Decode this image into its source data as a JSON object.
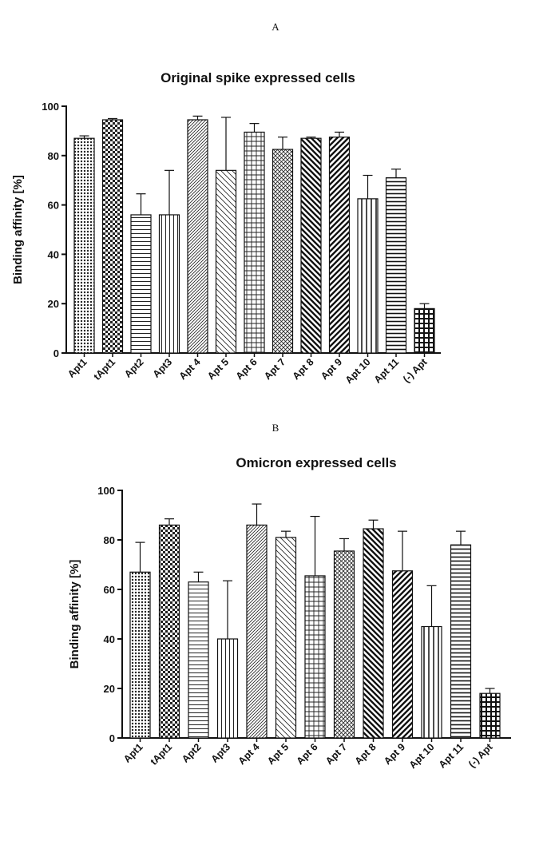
{
  "chart_data": [
    {
      "panel": "A",
      "type": "bar",
      "title": "Original spike expressed cells",
      "xlabel": "",
      "ylabel": "Binding affinity [%]",
      "ylim": [
        0,
        100
      ],
      "yticks": [
        0,
        20,
        40,
        60,
        80,
        100
      ],
      "categories": [
        "Apt1",
        "tApt1",
        "Apt2",
        "Apt3",
        "Apt 4",
        "Apt 5",
        "Apt 6",
        "Apt 7",
        "Apt 8",
        "Apt 9",
        "Apt 10",
        "Apt 11",
        "(-) Apt"
      ],
      "values": [
        87,
        94.5,
        56,
        56,
        94.5,
        74,
        89.5,
        82.5,
        87,
        87.5,
        62.5,
        71,
        18
      ],
      "errors": [
        1,
        0.5,
        8.5,
        18,
        1.5,
        21.5,
        3.5,
        5,
        0.5,
        2,
        9.5,
        3.5,
        2
      ]
    },
    {
      "panel": "B",
      "type": "bar",
      "title": "Omicron expressed cells",
      "xlabel": "",
      "ylabel": "Binding affinity [%]",
      "ylim": [
        0,
        100
      ],
      "yticks": [
        0,
        20,
        40,
        60,
        80,
        100
      ],
      "categories": [
        "Apt1",
        "tApt1",
        "Apt2",
        "Apt3",
        "Apt 4",
        "Apt 5",
        "Apt 6",
        "Apt 7",
        "Apt 8",
        "Apt 9",
        "Apt 10",
        "Apt 11",
        "(-) Apt"
      ],
      "values": [
        67,
        86,
        63,
        40,
        86,
        81,
        65.5,
        75.5,
        84.5,
        67.5,
        45,
        78,
        18
      ],
      "errors": [
        12,
        2.5,
        4,
        23.5,
        8.5,
        2.5,
        24,
        5,
        3.5,
        16,
        16.5,
        5.5,
        2
      ]
    }
  ]
}
